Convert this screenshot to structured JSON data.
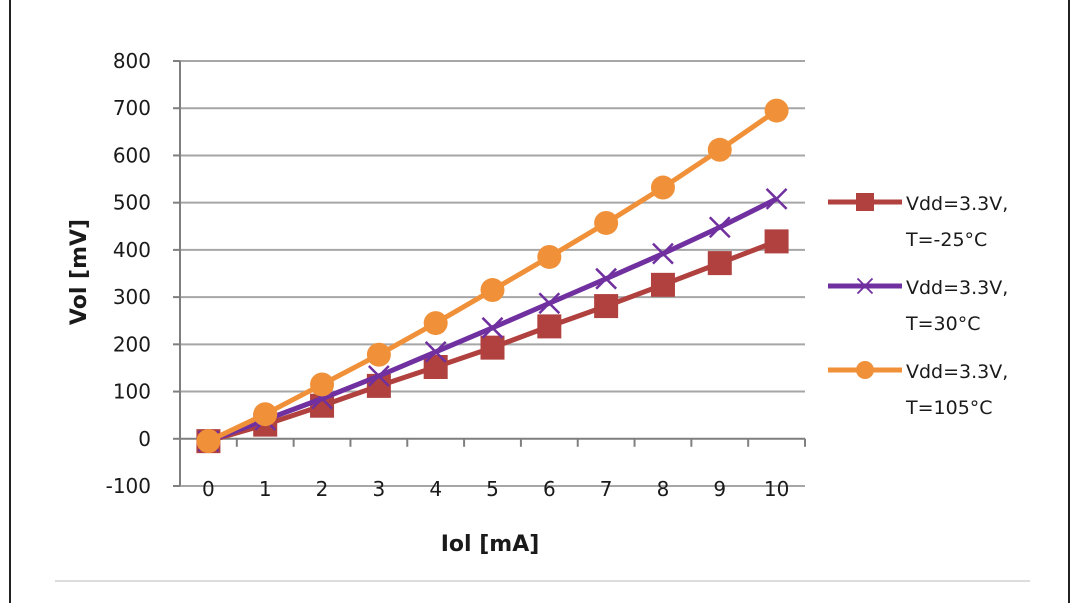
{
  "chart_data": {
    "type": "line",
    "title": "",
    "xlabel": "Iol [mA]",
    "ylabel": "Vol [mV]",
    "ylim": [
      -100,
      800
    ],
    "yticks": [
      -100,
      0,
      100,
      200,
      300,
      400,
      500,
      600,
      700,
      800
    ],
    "x": [
      0,
      1,
      2,
      3,
      4,
      5,
      6,
      7,
      8,
      9,
      10
    ],
    "grid": true,
    "legend_position": "right",
    "series": [
      {
        "name": "Vdd=3.3V, T=-25°C",
        "legend_lines": [
          "Vdd=3.3V,",
          "T=-25°C"
        ],
        "marker": "square",
        "color": "#b0413e",
        "values": [
          -5,
          30,
          70,
          112,
          152,
          193,
          238,
          281,
          326,
          372,
          418
        ]
      },
      {
        "name": "Vdd=3.3V, T=30°C",
        "legend_lines": [
          "Vdd=3.3V,",
          "T=30°C"
        ],
        "marker": "x",
        "color": "#7030a0",
        "values": [
          -5,
          40,
          85,
          133,
          184,
          235,
          287,
          339,
          392,
          448,
          508
        ]
      },
      {
        "name": "Vdd=3.3V, T=105°C",
        "legend_lines": [
          "Vdd=3.3V,",
          "T=105°C"
        ],
        "marker": "circle",
        "color": "#f0913a",
        "values": [
          -5,
          52,
          115,
          178,
          245,
          315,
          385,
          457,
          532,
          612,
          695
        ]
      }
    ]
  }
}
